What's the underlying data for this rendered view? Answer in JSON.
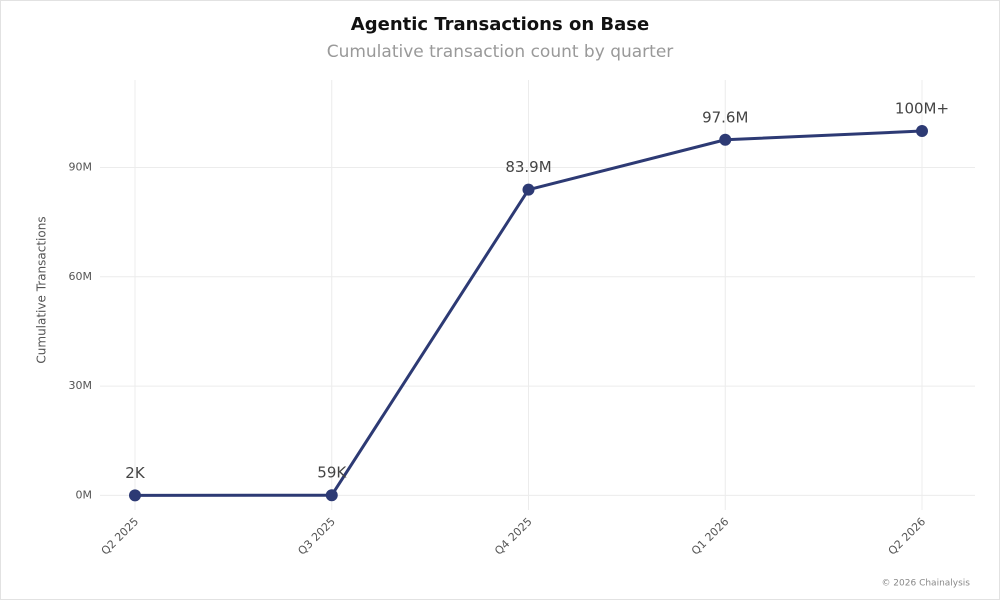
{
  "chart_data": {
    "type": "line",
    "title": "Agentic Transactions on Base",
    "subtitle": "Cumulative transaction count by quarter",
    "y_label": "Cumulative Transactions",
    "source": "© 2026 Chainalysis",
    "categories": [
      "Q2 2025",
      "Q3 2025",
      "Q4 2025",
      "Q1 2026",
      "Q2 2026"
    ],
    "series": [
      {
        "name": "Cumulative Transactions",
        "color": "#2d3a74",
        "values": [
          2000,
          59000,
          83900000,
          97600000,
          100000000
        ],
        "value_labels": [
          "2K",
          "59K",
          "83.9M",
          "97.6M",
          "100M+"
        ]
      }
    ],
    "ylim": [
      -4000000,
      114000000
    ],
    "yticks": [
      {
        "value": 0,
        "label": "0M"
      },
      {
        "value": 30000000,
        "label": "30M"
      },
      {
        "value": 60000000,
        "label": "60M"
      },
      {
        "value": 90000000,
        "label": "90M"
      }
    ],
    "grid": true
  }
}
